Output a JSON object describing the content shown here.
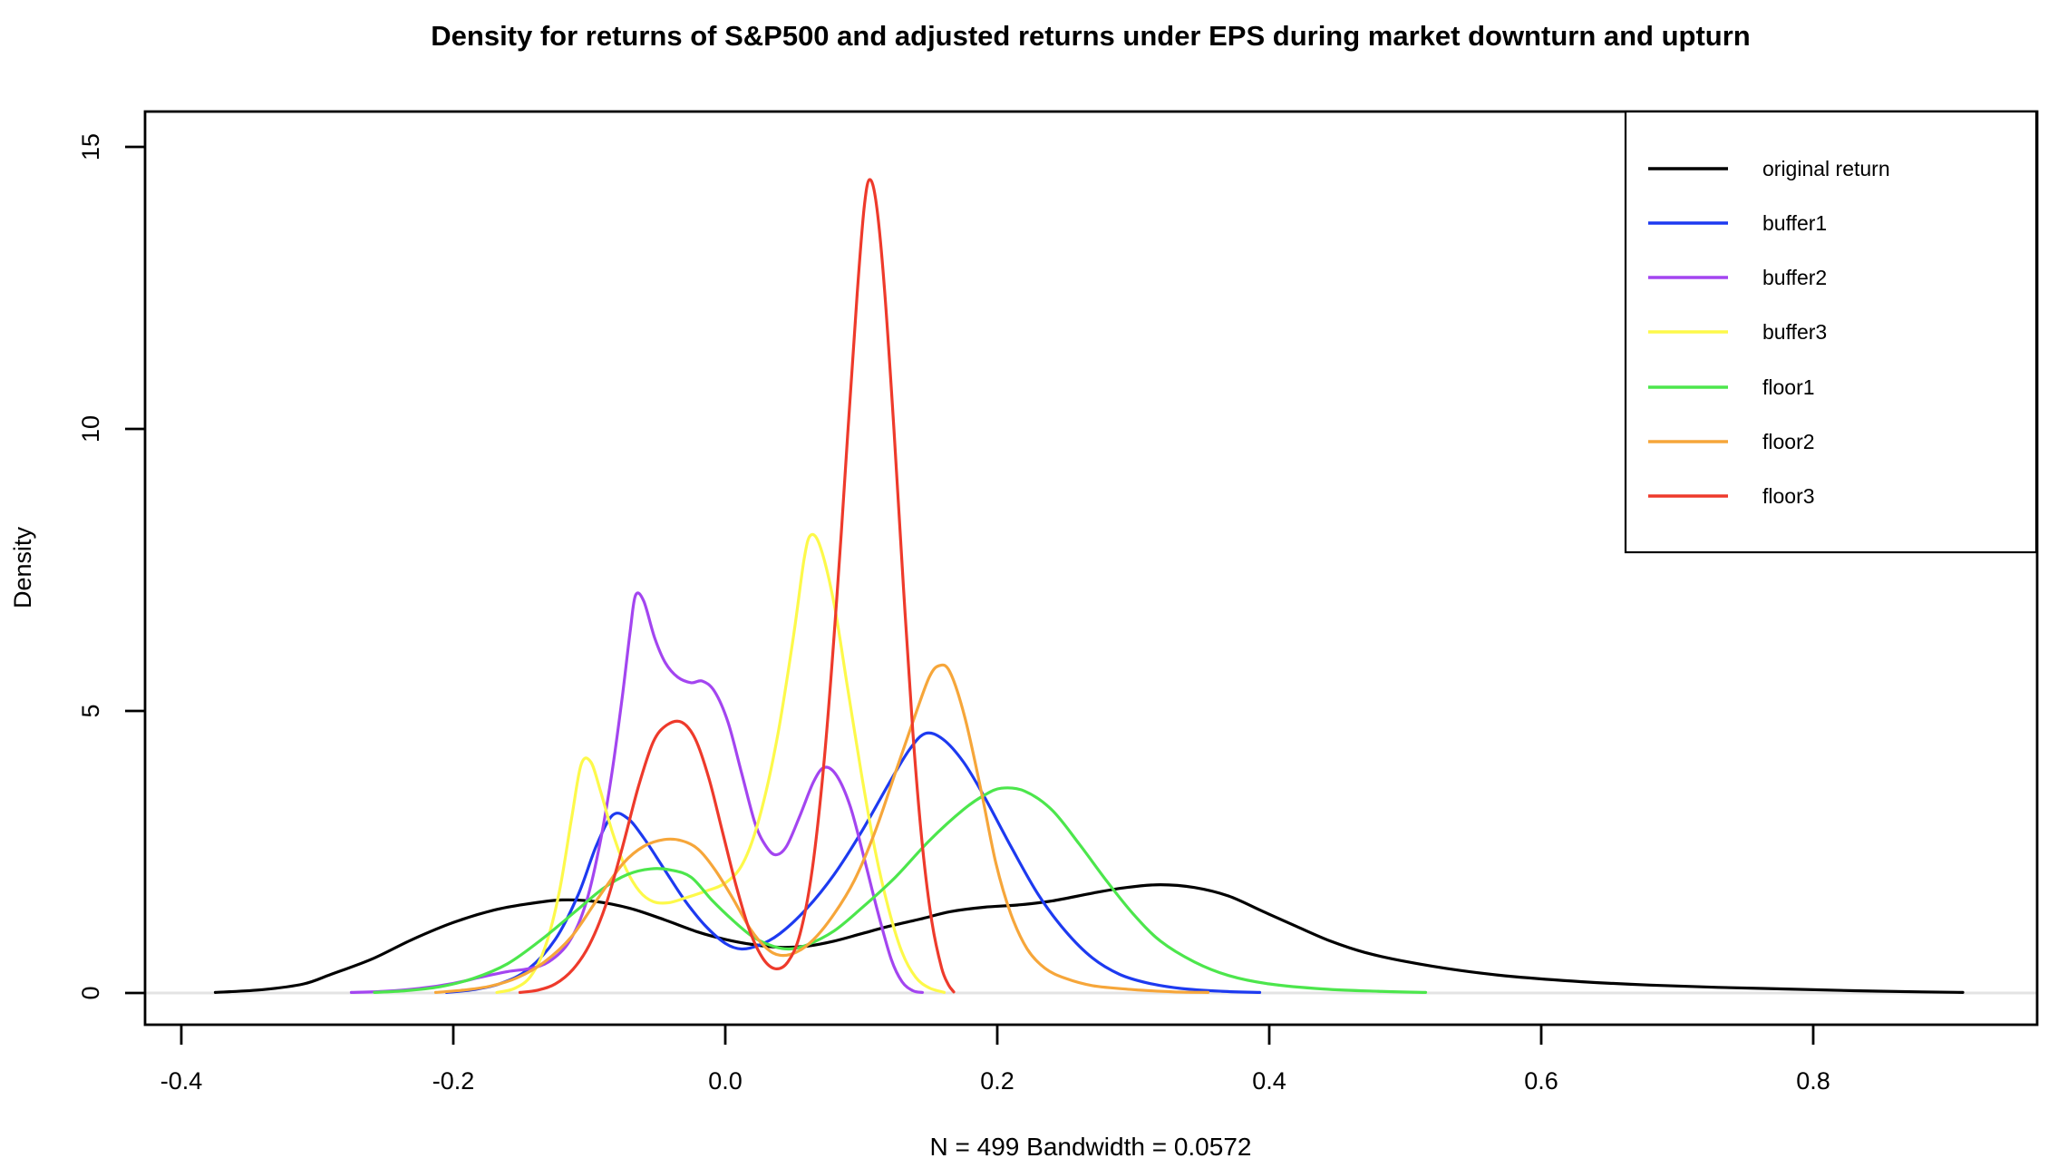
{
  "title": "Density for returns of S&P500 and adjusted returns under EPS during market downturn and upturn",
  "xlabel": "N = 499   Bandwidth = 0.0572",
  "ylabel": "Density",
  "legend": {
    "entries": [
      {
        "label": "original return",
        "color": "#000000"
      },
      {
        "label": "buffer1",
        "color": "#1d3af0"
      },
      {
        "label": "buffer2",
        "color": "#a345f0"
      },
      {
        "label": "buffer3",
        "color": "#fdf94a"
      },
      {
        "label": "floor1",
        "color": "#4ce64c"
      },
      {
        "label": " floor2",
        "color": "#f6a63a"
      },
      {
        "label": "floor3",
        "color": "#ee3a2b"
      }
    ]
  },
  "chart_data": {
    "type": "line",
    "title": "Density for returns of S&P500 and adjusted returns under EPS during market downturn and upturn",
    "xlabel": "N = 499   Bandwidth = 0.0572",
    "ylabel": "Density",
    "xlim": [
      -0.463,
      0.965
    ],
    "ylim": [
      0,
      15.6
    ],
    "grid": false,
    "zero_line": true,
    "zero_line_color": "#e3e3e3",
    "legend_position": "top-right",
    "x_ticks": [
      -0.4,
      -0.2,
      0.0,
      0.2,
      0.4,
      0.6,
      0.8
    ],
    "x_tick_labels": [
      "-0.4",
      "-0.2",
      "0.0",
      "0.2",
      "0.4",
      "0.6",
      "0.8"
    ],
    "y_ticks": [
      0,
      5,
      10,
      15
    ],
    "y_tick_labels": [
      "0",
      "5",
      "10",
      "15"
    ],
    "series": [
      {
        "name": "original return",
        "color": "#000000",
        "points": [
          [
            -0.375,
            0.01
          ],
          [
            -0.34,
            0.06
          ],
          [
            -0.31,
            0.16
          ],
          [
            -0.29,
            0.33
          ],
          [
            -0.26,
            0.6
          ],
          [
            -0.23,
            0.95
          ],
          [
            -0.2,
            1.25
          ],
          [
            -0.17,
            1.47
          ],
          [
            -0.145,
            1.58
          ],
          [
            -0.12,
            1.65
          ],
          [
            -0.095,
            1.62
          ],
          [
            -0.07,
            1.5
          ],
          [
            -0.045,
            1.3
          ],
          [
            -0.02,
            1.08
          ],
          [
            0.0,
            0.95
          ],
          [
            0.02,
            0.86
          ],
          [
            0.04,
            0.81
          ],
          [
            0.06,
            0.83
          ],
          [
            0.08,
            0.92
          ],
          [
            0.1,
            1.05
          ],
          [
            0.12,
            1.18
          ],
          [
            0.145,
            1.32
          ],
          [
            0.165,
            1.44
          ],
          [
            0.19,
            1.52
          ],
          [
            0.215,
            1.56
          ],
          [
            0.24,
            1.63
          ],
          [
            0.27,
            1.77
          ],
          [
            0.295,
            1.87
          ],
          [
            0.32,
            1.92
          ],
          [
            0.345,
            1.87
          ],
          [
            0.37,
            1.72
          ],
          [
            0.395,
            1.45
          ],
          [
            0.42,
            1.18
          ],
          [
            0.445,
            0.92
          ],
          [
            0.47,
            0.72
          ],
          [
            0.5,
            0.56
          ],
          [
            0.54,
            0.4
          ],
          [
            0.58,
            0.29
          ],
          [
            0.63,
            0.2
          ],
          [
            0.68,
            0.14
          ],
          [
            0.73,
            0.1
          ],
          [
            0.78,
            0.07
          ],
          [
            0.83,
            0.04
          ],
          [
            0.88,
            0.02
          ],
          [
            0.91,
            0.01
          ]
        ]
      },
      {
        "name": "buffer1",
        "color": "#1d3af0",
        "points": [
          [
            -0.205,
            0.01
          ],
          [
            -0.185,
            0.06
          ],
          [
            -0.165,
            0.17
          ],
          [
            -0.145,
            0.42
          ],
          [
            -0.125,
            0.95
          ],
          [
            -0.108,
            1.75
          ],
          [
            -0.095,
            2.6
          ],
          [
            -0.083,
            3.15
          ],
          [
            -0.072,
            3.1
          ],
          [
            -0.06,
            2.75
          ],
          [
            -0.045,
            2.2
          ],
          [
            -0.03,
            1.65
          ],
          [
            -0.015,
            1.2
          ],
          [
            0.0,
            0.88
          ],
          [
            0.012,
            0.78
          ],
          [
            0.025,
            0.85
          ],
          [
            0.04,
            1.05
          ],
          [
            0.06,
            1.5
          ],
          [
            0.08,
            2.1
          ],
          [
            0.1,
            2.85
          ],
          [
            0.12,
            3.7
          ],
          [
            0.135,
            4.3
          ],
          [
            0.147,
            4.6
          ],
          [
            0.16,
            4.5
          ],
          [
            0.175,
            4.1
          ],
          [
            0.19,
            3.5
          ],
          [
            0.21,
            2.6
          ],
          [
            0.23,
            1.75
          ],
          [
            0.25,
            1.1
          ],
          [
            0.27,
            0.62
          ],
          [
            0.29,
            0.33
          ],
          [
            0.31,
            0.18
          ],
          [
            0.335,
            0.08
          ],
          [
            0.365,
            0.03
          ],
          [
            0.393,
            0.01
          ]
        ]
      },
      {
        "name": "buffer2",
        "color": "#a345f0",
        "points": [
          [
            -0.275,
            0.01
          ],
          [
            -0.25,
            0.03
          ],
          [
            -0.225,
            0.08
          ],
          [
            -0.2,
            0.17
          ],
          [
            -0.18,
            0.28
          ],
          [
            -0.16,
            0.38
          ],
          [
            -0.145,
            0.43
          ],
          [
            -0.13,
            0.55
          ],
          [
            -0.115,
            0.9
          ],
          [
            -0.103,
            1.55
          ],
          [
            -0.093,
            2.55
          ],
          [
            -0.084,
            3.8
          ],
          [
            -0.076,
            5.2
          ],
          [
            -0.07,
            6.4
          ],
          [
            -0.066,
            7.05
          ],
          [
            -0.06,
            6.95
          ],
          [
            -0.052,
            6.3
          ],
          [
            -0.044,
            5.85
          ],
          [
            -0.035,
            5.6
          ],
          [
            -0.025,
            5.5
          ],
          [
            -0.017,
            5.53
          ],
          [
            -0.008,
            5.35
          ],
          [
            0.002,
            4.8
          ],
          [
            0.012,
            3.9
          ],
          [
            0.022,
            3.0
          ],
          [
            0.03,
            2.6
          ],
          [
            0.037,
            2.45
          ],
          [
            0.045,
            2.6
          ],
          [
            0.055,
            3.15
          ],
          [
            0.065,
            3.75
          ],
          [
            0.073,
            4.0
          ],
          [
            0.082,
            3.85
          ],
          [
            0.092,
            3.3
          ],
          [
            0.102,
            2.4
          ],
          [
            0.112,
            1.45
          ],
          [
            0.122,
            0.6
          ],
          [
            0.13,
            0.2
          ],
          [
            0.138,
            0.04
          ],
          [
            0.145,
            0.01
          ]
        ]
      },
      {
        "name": "buffer3",
        "color": "#fdf94a",
        "points": [
          [
            -0.168,
            0.01
          ],
          [
            -0.155,
            0.08
          ],
          [
            -0.143,
            0.3
          ],
          [
            -0.132,
            0.85
          ],
          [
            -0.122,
            1.8
          ],
          [
            -0.113,
            3.1
          ],
          [
            -0.106,
            4.05
          ],
          [
            -0.099,
            4.1
          ],
          [
            -0.092,
            3.6
          ],
          [
            -0.083,
            2.85
          ],
          [
            -0.073,
            2.2
          ],
          [
            -0.063,
            1.8
          ],
          [
            -0.053,
            1.62
          ],
          [
            -0.042,
            1.6
          ],
          [
            -0.03,
            1.68
          ],
          [
            -0.015,
            1.8
          ],
          [
            0.0,
            1.95
          ],
          [
            0.013,
            2.3
          ],
          [
            0.025,
            3.1
          ],
          [
            0.038,
            4.5
          ],
          [
            0.05,
            6.3
          ],
          [
            0.058,
            7.7
          ],
          [
            0.063,
            8.12
          ],
          [
            0.07,
            7.9
          ],
          [
            0.08,
            6.9
          ],
          [
            0.09,
            5.4
          ],
          [
            0.1,
            3.9
          ],
          [
            0.11,
            2.55
          ],
          [
            0.12,
            1.5
          ],
          [
            0.13,
            0.72
          ],
          [
            0.14,
            0.28
          ],
          [
            0.15,
            0.09
          ],
          [
            0.161,
            0.01
          ]
        ]
      },
      {
        "name": "floor1",
        "color": "#4ce64c",
        "points": [
          [
            -0.258,
            0.01
          ],
          [
            -0.235,
            0.04
          ],
          [
            -0.21,
            0.11
          ],
          [
            -0.185,
            0.26
          ],
          [
            -0.16,
            0.52
          ],
          [
            -0.135,
            0.95
          ],
          [
            -0.11,
            1.45
          ],
          [
            -0.09,
            1.85
          ],
          [
            -0.072,
            2.1
          ],
          [
            -0.055,
            2.2
          ],
          [
            -0.04,
            2.18
          ],
          [
            -0.025,
            2.05
          ],
          [
            -0.01,
            1.65
          ],
          [
            0.005,
            1.3
          ],
          [
            0.02,
            1.0
          ],
          [
            0.035,
            0.83
          ],
          [
            0.047,
            0.78
          ],
          [
            0.06,
            0.85
          ],
          [
            0.08,
            1.1
          ],
          [
            0.1,
            1.5
          ],
          [
            0.125,
            2.05
          ],
          [
            0.15,
            2.7
          ],
          [
            0.175,
            3.25
          ],
          [
            0.19,
            3.5
          ],
          [
            0.203,
            3.63
          ],
          [
            0.22,
            3.58
          ],
          [
            0.24,
            3.25
          ],
          [
            0.26,
            2.65
          ],
          [
            0.28,
            2.0
          ],
          [
            0.3,
            1.4
          ],
          [
            0.32,
            0.92
          ],
          [
            0.345,
            0.55
          ],
          [
            0.37,
            0.31
          ],
          [
            0.4,
            0.16
          ],
          [
            0.44,
            0.07
          ],
          [
            0.48,
            0.03
          ],
          [
            0.515,
            0.01
          ]
        ]
      },
      {
        "name": "floor2",
        "color": "#f6a63a",
        "points": [
          [
            -0.213,
            0.01
          ],
          [
            -0.193,
            0.05
          ],
          [
            -0.173,
            0.12
          ],
          [
            -0.153,
            0.27
          ],
          [
            -0.133,
            0.55
          ],
          [
            -0.113,
            1.0
          ],
          [
            -0.093,
            1.7
          ],
          [
            -0.075,
            2.3
          ],
          [
            -0.06,
            2.6
          ],
          [
            -0.045,
            2.72
          ],
          [
            -0.032,
            2.7
          ],
          [
            -0.02,
            2.55
          ],
          [
            -0.008,
            2.2
          ],
          [
            0.005,
            1.7
          ],
          [
            0.018,
            1.15
          ],
          [
            0.03,
            0.8
          ],
          [
            0.04,
            0.67
          ],
          [
            0.052,
            0.72
          ],
          [
            0.065,
            0.95
          ],
          [
            0.08,
            1.4
          ],
          [
            0.095,
            2.0
          ],
          [
            0.11,
            2.85
          ],
          [
            0.125,
            3.9
          ],
          [
            0.14,
            4.95
          ],
          [
            0.15,
            5.6
          ],
          [
            0.157,
            5.8
          ],
          [
            0.165,
            5.7
          ],
          [
            0.176,
            4.9
          ],
          [
            0.188,
            3.6
          ],
          [
            0.199,
            2.3
          ],
          [
            0.21,
            1.4
          ],
          [
            0.222,
            0.78
          ],
          [
            0.235,
            0.44
          ],
          [
            0.25,
            0.26
          ],
          [
            0.27,
            0.13
          ],
          [
            0.3,
            0.06
          ],
          [
            0.33,
            0.02
          ],
          [
            0.355,
            0.01
          ]
        ]
      },
      {
        "name": "floor3",
        "color": "#ee3a2b",
        "points": [
          [
            -0.151,
            0.01
          ],
          [
            -0.138,
            0.05
          ],
          [
            -0.125,
            0.16
          ],
          [
            -0.112,
            0.42
          ],
          [
            -0.1,
            0.85
          ],
          [
            -0.088,
            1.55
          ],
          [
            -0.076,
            2.55
          ],
          [
            -0.064,
            3.65
          ],
          [
            -0.053,
            4.45
          ],
          [
            -0.043,
            4.75
          ],
          [
            -0.032,
            4.8
          ],
          [
            -0.022,
            4.5
          ],
          [
            -0.012,
            3.8
          ],
          [
            -0.002,
            2.85
          ],
          [
            0.008,
            1.9
          ],
          [
            0.018,
            1.1
          ],
          [
            0.028,
            0.6
          ],
          [
            0.037,
            0.43
          ],
          [
            0.046,
            0.55
          ],
          [
            0.055,
            1.05
          ],
          [
            0.064,
            2.2
          ],
          [
            0.073,
            4.2
          ],
          [
            0.082,
            7.0
          ],
          [
            0.09,
            9.9
          ],
          [
            0.097,
            12.4
          ],
          [
            0.102,
            13.9
          ],
          [
            0.106,
            14.42
          ],
          [
            0.111,
            14.0
          ],
          [
            0.117,
            12.5
          ],
          [
            0.124,
            10.0
          ],
          [
            0.131,
            7.2
          ],
          [
            0.138,
            4.6
          ],
          [
            0.145,
            2.6
          ],
          [
            0.152,
            1.25
          ],
          [
            0.159,
            0.45
          ],
          [
            0.164,
            0.15
          ],
          [
            0.168,
            0.02
          ]
        ]
      }
    ]
  }
}
